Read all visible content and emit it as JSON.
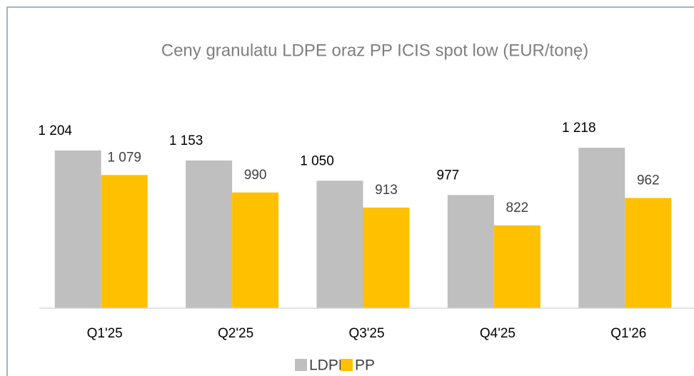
{
  "chart_data": {
    "type": "bar",
    "title": "Ceny granulatu LDPE oraz PP ICIS spot low (EUR/tonę)",
    "categories": [
      "Q1'25",
      "Q2'25",
      "Q3'25",
      "Q4'25",
      "Q1'26"
    ],
    "series": [
      {
        "name": "LDPE",
        "color": "#bfbfbf",
        "values": [
          1204,
          1153,
          1050,
          977,
          1218
        ],
        "value_labels": [
          "1 204",
          "1 153",
          "1 050",
          "977",
          "1 218"
        ]
      },
      {
        "name": "PP",
        "color": "#ffc000",
        "values": [
          1079,
          990,
          913,
          822,
          962
        ],
        "value_labels": [
          "1 079",
          "990",
          "913",
          "822",
          "962"
        ]
      }
    ],
    "ylim": [
      400,
      1400
    ],
    "legend": "bottom"
  }
}
